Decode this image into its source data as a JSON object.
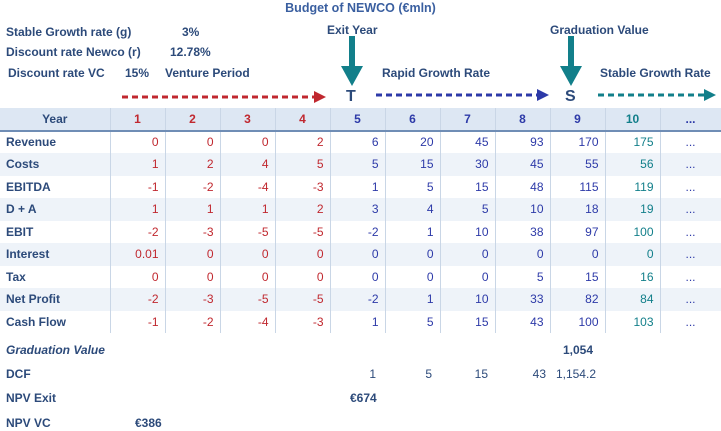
{
  "title": "Budget of NEWCO (€mln)",
  "params": {
    "stable_growth_label": "Stable Growth rate (g)",
    "stable_growth_value": "3%",
    "discount_newco_label": "Discount rate Newco (r)",
    "discount_newco_value": "12.78%",
    "discount_vc_label": "Discount rate VC",
    "discount_vc_value": "15%",
    "venture_period_label": "Venture Period"
  },
  "stages": {
    "exit_year": "Exit Year",
    "graduation_value": "Graduation Value",
    "rapid_growth": "Rapid Growth Rate",
    "stable_growth": "Stable Growth Rate",
    "t_marker": "T",
    "s_marker": "S"
  },
  "colors": {
    "venture": "#c0282f",
    "rapid": "#2d3aa8",
    "stable": "#127f8a",
    "exit_arrow": "#127f8a"
  },
  "table": {
    "year_label": "Year",
    "years": [
      "1",
      "2",
      "3",
      "4",
      "5",
      "6",
      "7",
      "8",
      "9",
      "10",
      "..."
    ],
    "rows": [
      {
        "label": "Revenue",
        "values": [
          "0",
          "0",
          "0",
          "2",
          "6",
          "20",
          "45",
          "93",
          "170",
          "175",
          "..."
        ]
      },
      {
        "label": "Costs",
        "values": [
          "1",
          "2",
          "4",
          "5",
          "5",
          "15",
          "30",
          "45",
          "55",
          "56",
          "..."
        ]
      },
      {
        "label": "EBITDA",
        "values": [
          "-1",
          "-2",
          "-4",
          "-3",
          "1",
          "5",
          "15",
          "48",
          "115",
          "119",
          "..."
        ]
      },
      {
        "label": "D + A",
        "values": [
          "1",
          "1",
          "1",
          "2",
          "3",
          "4",
          "5",
          "10",
          "18",
          "19",
          "..."
        ]
      },
      {
        "label": "EBIT",
        "values": [
          "-2",
          "-3",
          "-5",
          "-5",
          "-2",
          "1",
          "10",
          "38",
          "97",
          "100",
          "..."
        ]
      },
      {
        "label": "Interest",
        "values": [
          "0.01",
          "0",
          "0",
          "0",
          "0",
          "0",
          "0",
          "0",
          "0",
          "0",
          "..."
        ]
      },
      {
        "label": "Tax",
        "values": [
          "0",
          "0",
          "0",
          "0",
          "0",
          "0",
          "0",
          "5",
          "15",
          "16",
          "..."
        ]
      },
      {
        "label": "Net Profit",
        "values": [
          "-2",
          "-3",
          "-5",
          "-5",
          "-2",
          "1",
          "10",
          "33",
          "82",
          "84",
          "..."
        ]
      },
      {
        "label": "Cash Flow",
        "values": [
          "-1",
          "-2",
          "-4",
          "-3",
          "1",
          "5",
          "15",
          "43",
          "100",
          "103",
          "..."
        ]
      }
    ]
  },
  "summary": {
    "graduation_label": "Graduation Value",
    "graduation_value": "1,054",
    "dcf_label": "DCF",
    "dcf_values": [
      "1",
      "5",
      "15",
      "43",
      "1,154.2"
    ],
    "npv_exit_label": "NPV Exit",
    "npv_exit_value": "€674",
    "npv_vc_label": "NPV VC",
    "npv_vc_value": "€386"
  }
}
